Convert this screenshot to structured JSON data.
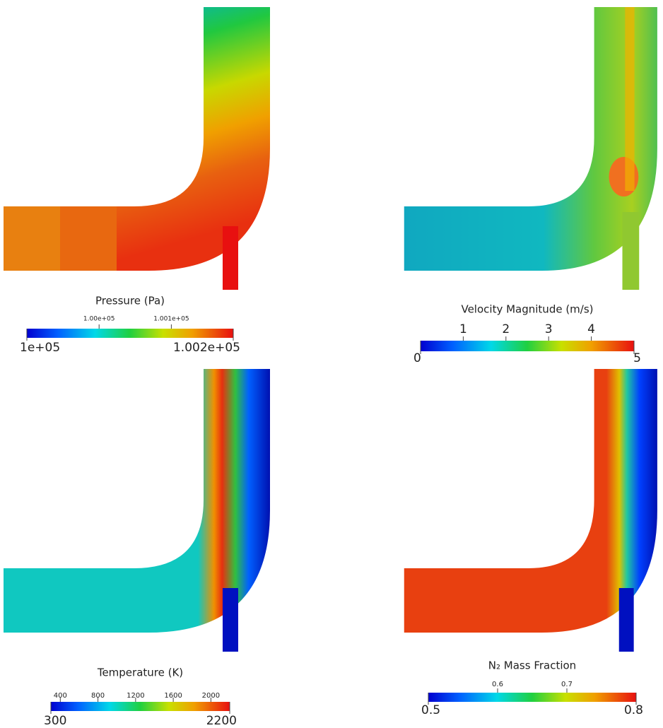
{
  "panels": [
    {
      "title": "Pressure (Pa)",
      "min": {
        "value": 100000,
        "label": "1e+05"
      },
      "max": {
        "value": 100200,
        "label": "1.002e+05"
      },
      "ticks": [
        {
          "value": 100070,
          "label": "1.00e+05"
        },
        {
          "value": 100140,
          "label": "1.001e+05"
        }
      ]
    },
    {
      "title": "Velocity Magnitude (m/s)",
      "min": 0,
      "max": 5,
      "ticks": [
        1,
        2,
        3,
        4
      ]
    },
    {
      "title": "Temperature (K)",
      "min": 300,
      "max": 2200,
      "ticks": [
        400,
        800,
        1200,
        1600,
        2000
      ]
    },
    {
      "title": "N₂ Mass Fraction",
      "min": 0.5,
      "max": 0.8,
      "ticks": [
        0.6,
        0.7
      ]
    }
  ]
}
